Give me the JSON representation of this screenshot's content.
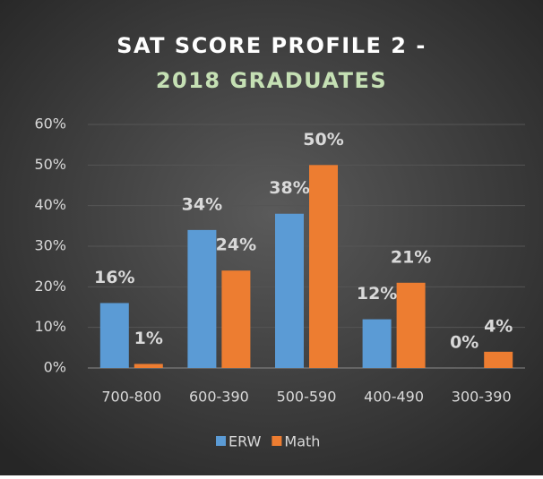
{
  "chart_data": {
    "type": "bar",
    "title": [
      "SAT SCORE PROFILE 2 -",
      "2018 GRADUATES"
    ],
    "title_colors": [
      "#ffffff",
      "#c5e0b4"
    ],
    "categories": [
      "700-800",
      "600-390",
      "500-590",
      "400-490",
      "300-390"
    ],
    "series": [
      {
        "name": "ERW",
        "color": "#5b9bd5",
        "values": [
          16,
          34,
          38,
          12,
          0
        ],
        "value_labels": [
          "16%",
          "34%",
          "38%",
          "12%",
          "0%"
        ]
      },
      {
        "name": "Math",
        "color": "#ed7d31",
        "values": [
          1,
          24,
          50,
          21,
          4
        ],
        "value_labels": [
          "1%",
          "24%",
          "50%",
          "21%",
          "4%"
        ]
      }
    ],
    "ylim": [
      0,
      60
    ],
    "yticks": [
      {
        "value": 0,
        "label": "0%"
      },
      {
        "value": 10,
        "label": "10%"
      },
      {
        "value": 20,
        "label": "20%"
      },
      {
        "value": 30,
        "label": "30%"
      },
      {
        "value": 40,
        "label": "40%"
      },
      {
        "value": 50,
        "label": "50%"
      },
      {
        "value": 60,
        "label": "60%"
      }
    ],
    "grid": true,
    "legend": "bottom"
  }
}
